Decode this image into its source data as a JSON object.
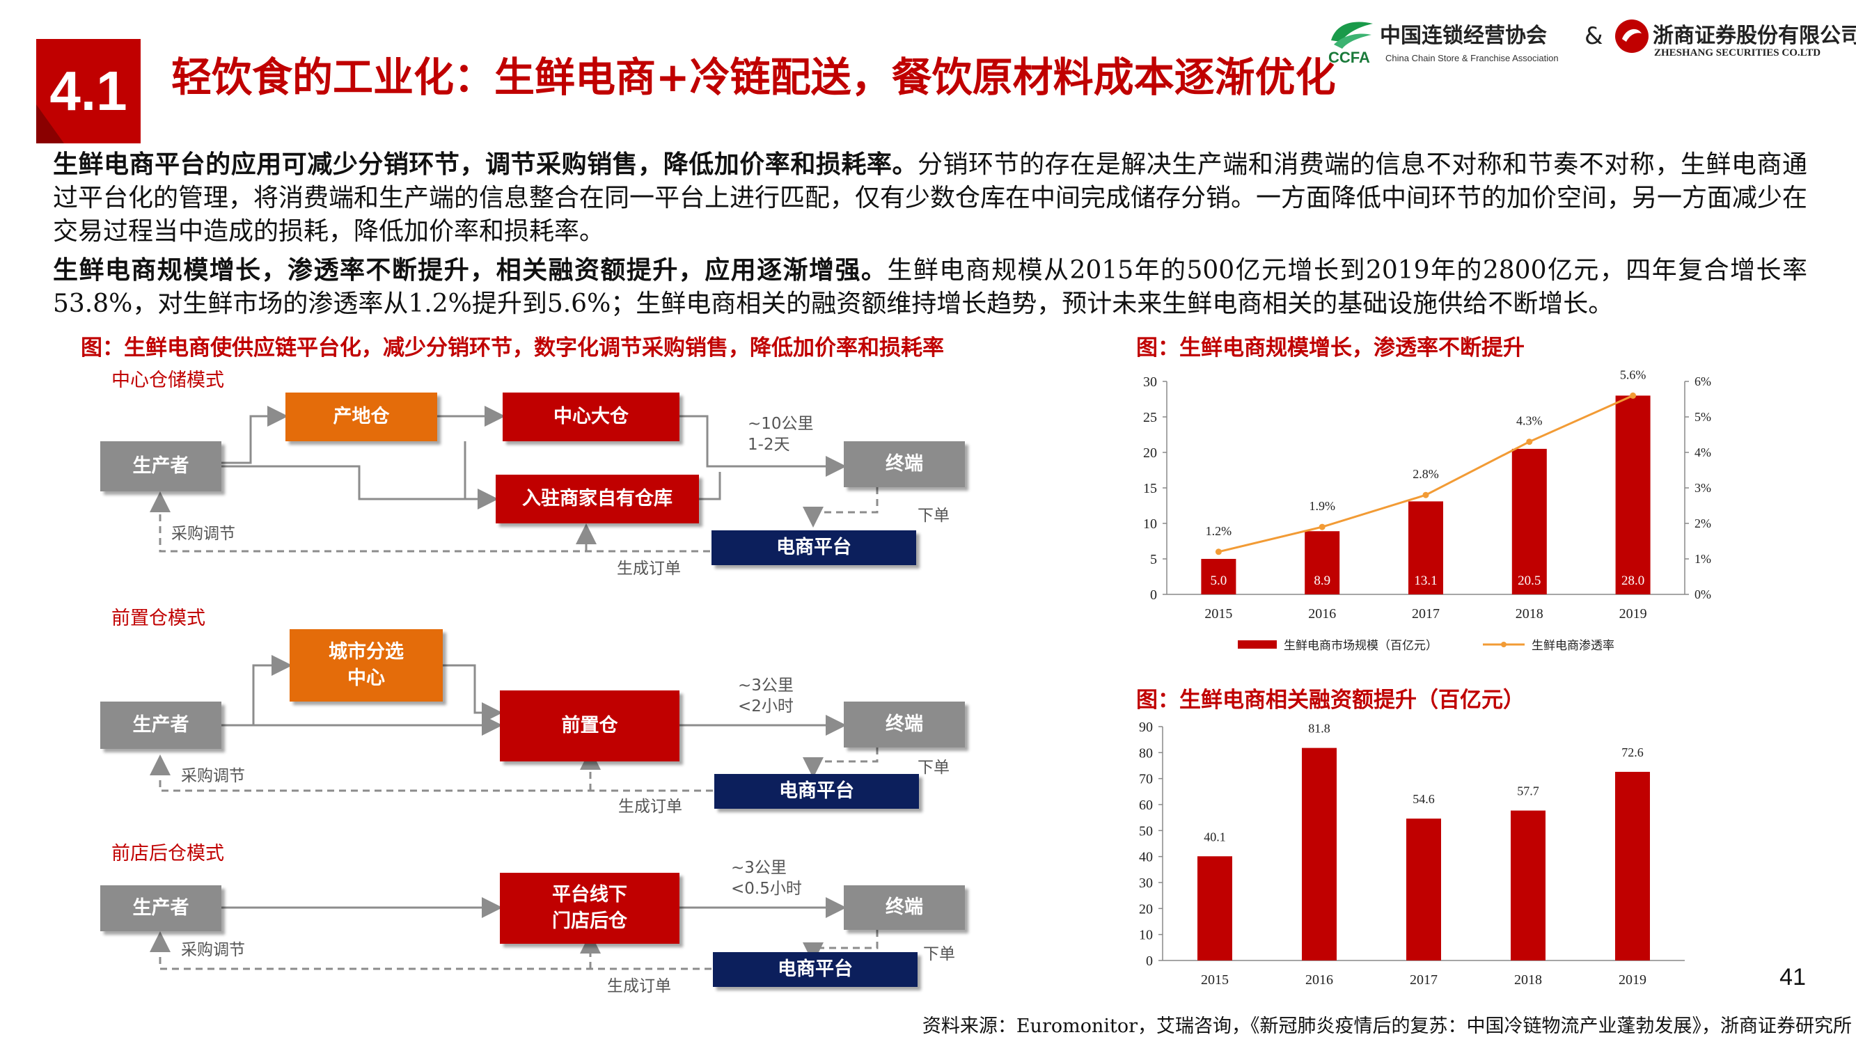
{
  "header": {
    "section_number": "4.1",
    "title": "轻饮食的工业化：生鲜电商+冷链配送，餐饮原材料成本逐渐优化",
    "logo_left_cn": "中国连锁经营协会",
    "logo_left_abbr": "CCFA",
    "logo_left_en": "China Chain Store & Franchise Association",
    "ampersand": "&",
    "logo_right_cn": "浙商证券股份有限公司",
    "logo_right_en": "ZHESHANG SECURITIES CO.LTD"
  },
  "paragraphs": [
    {
      "bold": "生鲜电商平台的应用可减少分销环节，调节采购销售，降低加价率和损耗率。",
      "text": "分销环节的存在是解决生产端和消费端的信息不对称和节奏不对称，生鲜电商通过平台化的管理，将消费端和生产端的信息整合在同一平台上进行匹配，仅有少数仓库在中间完成储存分销。一方面降低中间环节的加价空间，另一方面减少在交易过程当中造成的损耗，降低加价率和损耗率。"
    },
    {
      "bold": "生鲜电商规模增长，渗透率不断提升，相关融资额提升，应用逐渐增强。",
      "text": "生鲜电商规模从2015年的500亿元增长到2019年的2800亿元，四年复合增长率53.8%，对生鲜市场的渗透率从1.2%提升到5.6%；生鲜电商相关的融资额维持增长趋势，预计未来生鲜电商相关的基础设施供给不断增长。"
    }
  ],
  "diagram": {
    "title": "图：生鲜电商使供应链平台化，减少分销环节，数字化调节采购销售，降低加价率和损耗率",
    "mode1": {
      "title": "中心仓储模式",
      "producer": "生产者",
      "origin_warehouse": "产地仓",
      "central_warehouse": "中心大仓",
      "merchant_warehouse": "入驻商家自有仓库",
      "terminal": "终端",
      "platform": "电商平台",
      "distance": "~10公里",
      "time": "1-2天",
      "order": "下单",
      "purchase": "采购调节",
      "generate": "生成订单"
    },
    "mode2": {
      "title": "前置仓模式",
      "producer": "生产者",
      "city_center": "城市分选\n中心",
      "front_warehouse": "前置仓",
      "terminal": "终端",
      "platform": "电商平台",
      "distance": "~3公里",
      "time": "<2小时",
      "order": "下单",
      "purchase": "采购调节",
      "generate": "生成订单"
    },
    "mode3": {
      "title": "前店后仓模式",
      "producer": "生产者",
      "store": "平台线下\n门店后仓",
      "terminal": "终端",
      "platform": "电商平台",
      "distance": "~3公里",
      "time": "<0.5小时",
      "order": "下单",
      "purchase": "采购调节",
      "generate": "生成订单"
    }
  },
  "chart_titles": {
    "chart1": "图：生鲜电商规模增长，渗透率不断提升",
    "chart2": "图：生鲜电商相关融资额提升（百亿元）"
  },
  "chart_data": [
    {
      "type": "bar",
      "categories": [
        "2015",
        "2016",
        "2017",
        "2018",
        "2019"
      ],
      "series": [
        {
          "name": "生鲜电商市场规模（百亿元）",
          "type": "bar",
          "axis": "left",
          "values": [
            5.0,
            8.9,
            13.1,
            20.5,
            28.0
          ],
          "labels": [
            "5.0",
            "8.9",
            "13.1",
            "20.5",
            "28.0"
          ],
          "color": "#c00000"
        },
        {
          "name": "生鲜电商渗透率",
          "type": "line",
          "axis": "right",
          "values": [
            1.2,
            1.9,
            2.8,
            4.3,
            5.6
          ],
          "labels": [
            "1.2%",
            "1.9%",
            "2.8%",
            "4.3%",
            "5.6%"
          ],
          "color": "#f29b35"
        }
      ],
      "ylim": [
        0,
        30
      ],
      "yticks": [
        "0",
        "5",
        "10",
        "15",
        "20",
        "25",
        "30"
      ],
      "y2lim": [
        0,
        6
      ],
      "y2ticks": [
        "0%",
        "1%",
        "2%",
        "3%",
        "4%",
        "5%",
        "6%"
      ],
      "legend_position": "bottom",
      "grid": false
    },
    {
      "type": "bar",
      "categories": [
        "2015",
        "2016",
        "2017",
        "2018",
        "2019"
      ],
      "values": [
        40.1,
        81.8,
        54.6,
        57.7,
        72.6
      ],
      "labels": [
        "40.1",
        "81.8",
        "54.6",
        "57.7",
        "72.6"
      ],
      "ylim": [
        0,
        90
      ],
      "yticks": [
        "0",
        "10",
        "20",
        "30",
        "40",
        "50",
        "60",
        "70",
        "80",
        "90"
      ],
      "color": "#c00000",
      "grid": false
    }
  ],
  "footer": {
    "page_number": "41",
    "source": "资料来源：Euromonitor，艾瑞咨询，《新冠肺炎疫情后的复苏：中国冷链物流产业蓬勃发展》，浙商证券研究所"
  }
}
